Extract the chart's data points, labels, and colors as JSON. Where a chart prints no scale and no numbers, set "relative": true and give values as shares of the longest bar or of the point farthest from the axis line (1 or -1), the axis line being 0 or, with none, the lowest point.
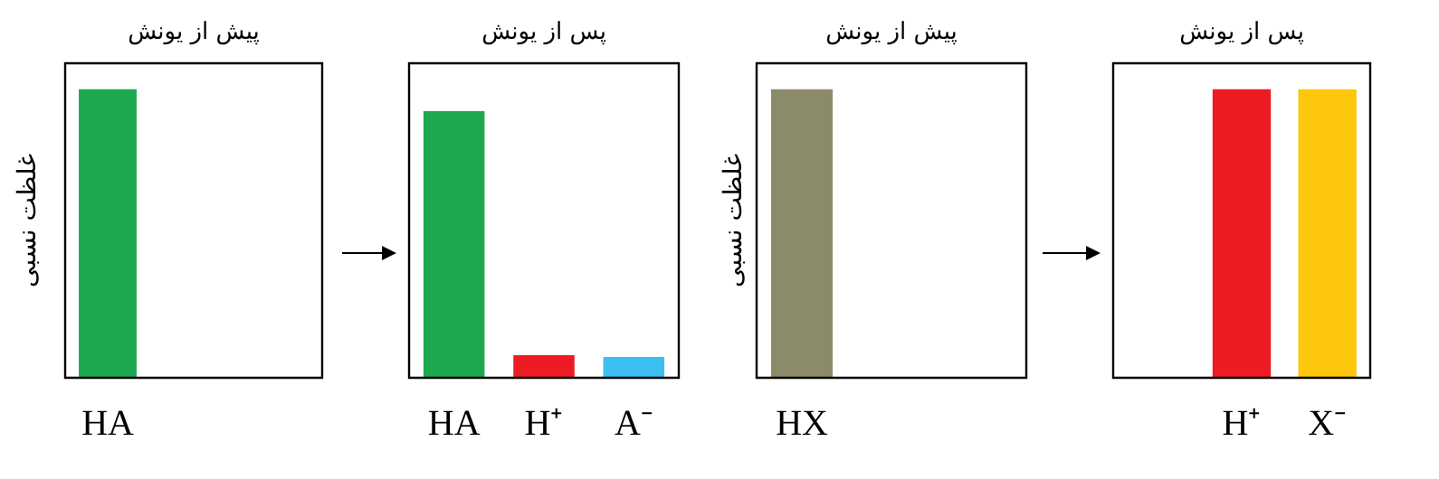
{
  "chart_data": [
    {
      "type": "bar",
      "relative": true,
      "title": "پیش از یونش",
      "ylabel": "غلظت نسبی",
      "categories": [
        "HA"
      ],
      "values": [
        1
      ],
      "colors": [
        "#1fa84f"
      ]
    },
    {
      "type": "bar",
      "relative": true,
      "title": "پس از یونش",
      "categories": [
        "HA",
        "H⁺",
        "A⁻"
      ],
      "values": [
        1,
        0.085,
        0.078
      ],
      "colors": [
        "#1fa84f",
        "#ed1c24",
        "#3bbfef"
      ]
    },
    {
      "type": "bar",
      "relative": true,
      "title": "پیش از یونش",
      "ylabel": "غلظت نسبی",
      "categories": [
        "HX"
      ],
      "values": [
        1
      ],
      "colors": [
        "#8b8b6a"
      ]
    },
    {
      "type": "bar",
      "relative": true,
      "title": "پس از یونش",
      "categories": [
        null,
        "H⁺",
        "X⁻"
      ],
      "values": [
        null,
        1,
        1
      ],
      "colors": [
        "#ed1c24",
        "#ed1c24",
        "#fdc70c"
      ]
    }
  ]
}
